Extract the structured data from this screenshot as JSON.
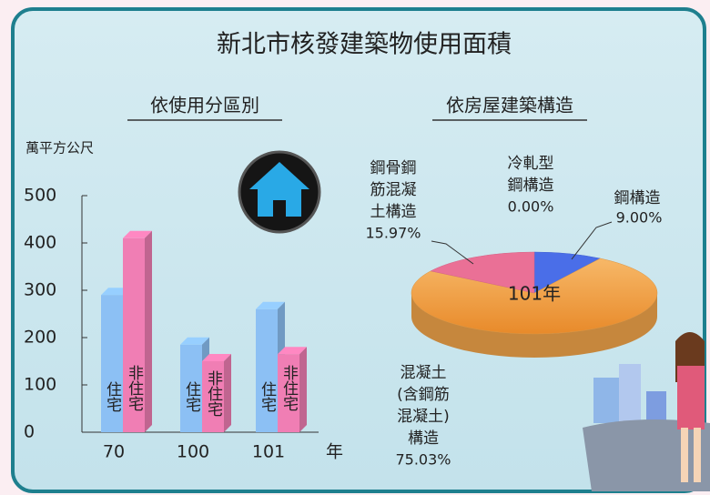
{
  "title": "新北市核發建築物使用面積",
  "chart_data": [
    {
      "type": "bar",
      "title": "依使用分區別",
      "y_label": "萬平方公尺",
      "x_label": "年",
      "categories": [
        "70",
        "100",
        "101"
      ],
      "series": [
        {
          "name": "住宅",
          "color": "#8cc0f4",
          "values": [
            290,
            185,
            260
          ]
        },
        {
          "name": "非住宅",
          "color": "#f07eb4",
          "values": [
            410,
            150,
            165
          ]
        }
      ],
      "ylim": [
        0,
        500
      ],
      "yticks": [
        0,
        100,
        200,
        300,
        400,
        500
      ]
    },
    {
      "type": "pie",
      "title": "依房屋建築構造",
      "center_label": "101年",
      "categories": [
        [
          "冷軋型",
          "鋼構造"
        ],
        [
          "鋼構造"
        ],
        [
          "混凝土",
          "(含鋼筋",
          "混凝土)",
          "構造"
        ],
        [
          "鋼骨鋼",
          "筋混凝",
          "土構造"
        ]
      ],
      "values": [
        0.0,
        9.0,
        75.03,
        15.97
      ],
      "value_labels": [
        "0.00%",
        "9.00%",
        "75.03%",
        "15.97%"
      ],
      "colors": [
        "#4a7de0",
        "#4a6ee8",
        "#f2a54a",
        "#ea7096"
      ]
    }
  ]
}
